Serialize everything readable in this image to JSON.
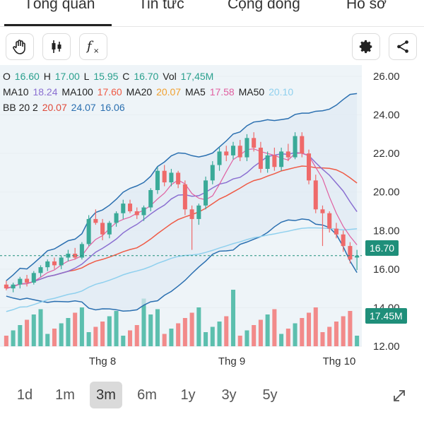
{
  "tabs": [
    {
      "label": "Tổng quan",
      "active": true
    },
    {
      "label": "Tin tức",
      "active": false
    },
    {
      "label": "Cộng đồng",
      "active": false
    },
    {
      "label": "Hồ sơ",
      "active": false
    }
  ],
  "toolbar": {
    "left_icons": [
      "hand-icon",
      "candlestick-icon",
      "function-icon"
    ],
    "right_icons": [
      "gear-icon",
      "share-icon"
    ]
  },
  "ohlc": {
    "o_label": "O",
    "o": "16.60",
    "h_label": "H",
    "h": "17.00",
    "l_label": "L",
    "l": "15.95",
    "c_label": "C",
    "c": "16.70",
    "vol_label": "Vol",
    "vol": "17,45M"
  },
  "ma": [
    {
      "label": "MA10",
      "value": "18.24",
      "color": "#8a6fd1"
    },
    {
      "label": "MA100",
      "value": "17.60",
      "color": "#ef5a45"
    },
    {
      "label": "MA20",
      "value": "20.07",
      "color": "#f0a030"
    },
    {
      "label": "MA5",
      "value": "17.58",
      "color": "#e05fa0"
    },
    {
      "label": "MA50",
      "value": "20.10",
      "color": "#8fd0ee"
    }
  ],
  "bb": {
    "label": "BB 20 2",
    "v1": "20.07",
    "v2": "24.07",
    "v3": "16.06",
    "c1": "#e04a3a",
    "c2": "#2a6fb0",
    "c3": "#2a6fb0"
  },
  "price_tag": "16.70",
  "volume_tag": "17.45M",
  "periods": [
    {
      "label": "1d",
      "active": false
    },
    {
      "label": "1m",
      "active": false
    },
    {
      "label": "3m",
      "active": true
    },
    {
      "label": "6m",
      "active": false
    },
    {
      "label": "1y",
      "active": false
    },
    {
      "label": "3y",
      "active": false
    },
    {
      "label": "5y",
      "active": false
    }
  ],
  "expand_icon": "expand-icon",
  "colors": {
    "up": "#3aaa98",
    "down": "#ef6a6a",
    "vol_up": "#5cbfae",
    "vol_down": "#f28a8a"
  },
  "chart_data": {
    "type": "candlestick",
    "x_ticks": [
      "Thg 8",
      "Thg 9",
      "Thg 10"
    ],
    "y_ticks": [
      "26.00",
      "24.00",
      "22.00",
      "20.00",
      "18.00",
      "16.00",
      "14.00",
      "12.00"
    ],
    "ylim": [
      12,
      26
    ],
    "candles": [
      [
        15.2,
        15.4,
        14.9,
        15.0
      ],
      [
        15.0,
        15.3,
        14.8,
        15.2
      ],
      [
        15.2,
        15.6,
        15.0,
        15.5
      ],
      [
        15.5,
        15.7,
        15.1,
        15.3
      ],
      [
        15.3,
        15.9,
        15.2,
        15.8
      ],
      [
        15.8,
        16.2,
        15.6,
        16.1
      ],
      [
        16.1,
        16.5,
        15.9,
        16.4
      ],
      [
        16.4,
        16.6,
        16.0,
        16.2
      ],
      [
        16.2,
        16.7,
        16.0,
        16.6
      ],
      [
        16.6,
        17.0,
        16.4,
        16.8
      ],
      [
        16.8,
        17.1,
        16.5,
        16.6
      ],
      [
        16.6,
        17.4,
        16.5,
        17.3
      ],
      [
        17.3,
        18.8,
        17.2,
        18.6
      ],
      [
        18.6,
        19.1,
        18.3,
        18.4
      ],
      [
        18.4,
        18.6,
        17.5,
        17.8
      ],
      [
        17.8,
        18.5,
        17.6,
        18.4
      ],
      [
        18.4,
        19.0,
        18.2,
        18.9
      ],
      [
        18.9,
        19.6,
        18.6,
        19.4
      ],
      [
        19.4,
        19.6,
        18.9,
        19.0
      ],
      [
        19.0,
        19.2,
        18.6,
        18.8
      ],
      [
        18.8,
        19.3,
        18.5,
        19.2
      ],
      [
        19.2,
        20.2,
        19.0,
        20.1
      ],
      [
        20.1,
        21.3,
        19.9,
        21.1
      ],
      [
        21.1,
        21.4,
        20.3,
        20.5
      ],
      [
        20.5,
        21.2,
        20.3,
        21.0
      ],
      [
        21.0,
        21.1,
        20.2,
        20.4
      ],
      [
        20.4,
        20.6,
        18.8,
        19.1
      ],
      [
        19.1,
        19.3,
        17.0,
        18.6
      ],
      [
        18.6,
        19.4,
        18.3,
        19.3
      ],
      [
        19.3,
        20.8,
        19.1,
        20.6
      ],
      [
        20.6,
        21.6,
        20.4,
        21.4
      ],
      [
        21.4,
        22.3,
        21.1,
        22.1
      ],
      [
        22.1,
        22.4,
        21.6,
        21.9
      ],
      [
        21.9,
        22.6,
        21.7,
        22.4
      ],
      [
        22.4,
        22.7,
        21.6,
        21.8
      ],
      [
        21.8,
        23.0,
        21.6,
        22.8
      ],
      [
        22.8,
        23.1,
        22.1,
        22.3
      ],
      [
        22.3,
        22.6,
        21.0,
        21.2
      ],
      [
        21.2,
        22.1,
        21.0,
        21.9
      ],
      [
        21.9,
        22.3,
        21.1,
        21.3
      ],
      [
        21.3,
        22.3,
        21.1,
        22.1
      ],
      [
        22.1,
        22.5,
        21.6,
        21.8
      ],
      [
        21.8,
        23.1,
        21.7,
        22.9
      ],
      [
        22.9,
        23.1,
        21.8,
        22.0
      ],
      [
        22.0,
        22.2,
        20.4,
        20.6
      ],
      [
        20.6,
        20.9,
        18.9,
        19.1
      ],
      [
        19.1,
        19.3,
        17.2,
        18.9
      ],
      [
        18.9,
        19.0,
        17.9,
        18.1
      ],
      [
        18.1,
        18.4,
        17.6,
        17.8
      ],
      [
        17.8,
        18.0,
        16.9,
        17.2
      ],
      [
        17.2,
        17.4,
        16.3,
        16.5
      ],
      [
        16.6,
        17.0,
        15.95,
        16.7
      ]
    ],
    "volume_max_label": "17.45M"
  }
}
